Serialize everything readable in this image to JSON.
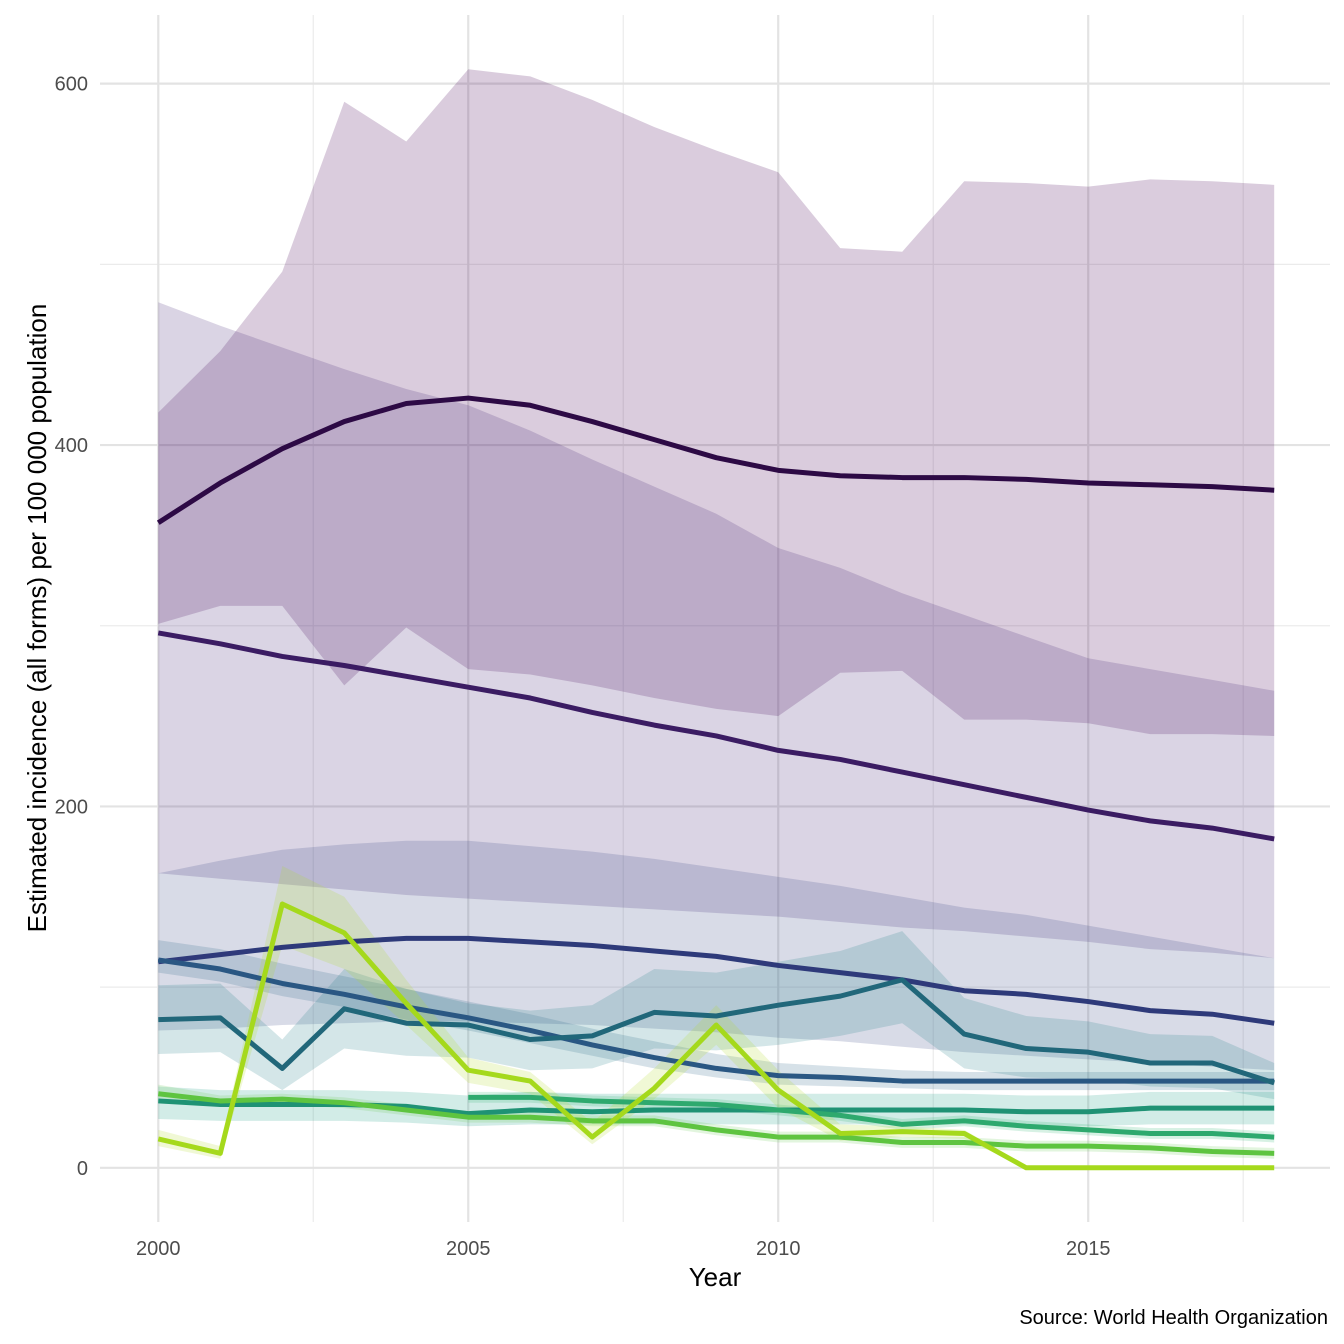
{
  "chart_data": {
    "type": "line",
    "title": "",
    "xlabel": "Year",
    "ylabel": "Estimated incidence (all forms) per 100 000 population",
    "caption": "Source: World Health Organization",
    "xlim": [
      1999.06,
      2018.9
    ],
    "ylim": [
      -30,
      638
    ],
    "x_ticks": [
      2000,
      2005,
      2010,
      2015
    ],
    "x_tick_labels": [
      "2000",
      "2005",
      "2010",
      "2015"
    ],
    "x_minor_ticks": [
      2002.5,
      2007.5,
      2012.5,
      2017.5
    ],
    "y_ticks": [
      0,
      200,
      400,
      600
    ],
    "y_tick_labels": [
      "0",
      "200",
      "400",
      "600"
    ],
    "y_minor_ticks": [
      100,
      300,
      500
    ],
    "grid": true,
    "legend": "none",
    "series": [
      {
        "name": "series-1",
        "color": "#2d0a45",
        "band_color": "#440154",
        "x": [
          2000,
          2001,
          2002,
          2003,
          2004,
          2005,
          2006,
          2007,
          2008,
          2009,
          2010,
          2011,
          2012,
          2013,
          2014,
          2015,
          2016,
          2017,
          2018
        ],
        "values": [
          357,
          379,
          398,
          413,
          423,
          426,
          422,
          413,
          403,
          393,
          386,
          383,
          382,
          382,
          381,
          379,
          378,
          377,
          375
        ],
        "upper": [
          418,
          452,
          496,
          590,
          568,
          608,
          604,
          591,
          576,
          563,
          551,
          509,
          507,
          546,
          545,
          543,
          547,
          546,
          544
        ],
        "lower": [
          301,
          311,
          311,
          267,
          299,
          276,
          273,
          267,
          260,
          254,
          250,
          274,
          275,
          248,
          248,
          246,
          240,
          240,
          239
        ]
      },
      {
        "name": "series-2",
        "color": "#3b1c63",
        "band_color": "#482878",
        "x": [
          2000,
          2001,
          2002,
          2003,
          2004,
          2005,
          2006,
          2007,
          2008,
          2009,
          2010,
          2011,
          2012,
          2013,
          2014,
          2015,
          2016,
          2017,
          2018
        ],
        "values": [
          296,
          290,
          283,
          278,
          272,
          266,
          260,
          252,
          245,
          239,
          231,
          226,
          219,
          212,
          205,
          198,
          192,
          188,
          182
        ],
        "upper": [
          479,
          466,
          454,
          442,
          431,
          422,
          408,
          392,
          377,
          362,
          343,
          332,
          318,
          306,
          294,
          282,
          276,
          270,
          264
        ],
        "lower": [
          163,
          160,
          157,
          154,
          151,
          149,
          147,
          145,
          143,
          141,
          139,
          136,
          133,
          131,
          128,
          125,
          121,
          119,
          116
        ]
      },
      {
        "name": "series-3",
        "color": "#2e3a7a",
        "band_color": "#3e4a89",
        "x": [
          2000,
          2001,
          2002,
          2003,
          2004,
          2005,
          2006,
          2007,
          2008,
          2009,
          2010,
          2011,
          2012,
          2013,
          2014,
          2015,
          2016,
          2017,
          2018
        ],
        "values": [
          114,
          118,
          122,
          125,
          127,
          127,
          125,
          123,
          120,
          117,
          112,
          108,
          104,
          98,
          96,
          92,
          87,
          85,
          80
        ],
        "upper": [
          163,
          170,
          176,
          179,
          181,
          181,
          178,
          175,
          171,
          166,
          161,
          156,
          150,
          144,
          140,
          134,
          128,
          122,
          116
        ],
        "lower": [
          76,
          77,
          79,
          80,
          81,
          81,
          80,
          79,
          77,
          75,
          72,
          70,
          67,
          64,
          62,
          60,
          58,
          56,
          54
        ]
      },
      {
        "name": "series-4",
        "color": "#2a5783",
        "band_color": "#31688e",
        "x": [
          2000,
          2001,
          2002,
          2003,
          2004,
          2005,
          2006,
          2007,
          2008,
          2009,
          2010,
          2011,
          2012,
          2013,
          2014,
          2015,
          2016,
          2017,
          2018
        ],
        "values": [
          115,
          110,
          102,
          96,
          89,
          83,
          76,
          68,
          61,
          55,
          51,
          50,
          48,
          48,
          48,
          48,
          48,
          48,
          48
        ],
        "upper": [
          126,
          121,
          113,
          106,
          99,
          92,
          85,
          77,
          70,
          63,
          58,
          56,
          54,
          53,
          53,
          53,
          53,
          53,
          53
        ],
        "lower": [
          108,
          103,
          95,
          89,
          82,
          76,
          69,
          62,
          55,
          50,
          46,
          45,
          44,
          43,
          43,
          43,
          43,
          43,
          43
        ]
      },
      {
        "name": "series-5",
        "color": "#21677a",
        "band_color": "#26828e",
        "x": [
          2000,
          2001,
          2002,
          2003,
          2004,
          2005,
          2006,
          2007,
          2008,
          2009,
          2010,
          2011,
          2012,
          2013,
          2014,
          2015,
          2016,
          2017,
          2018
        ],
        "values": [
          82,
          83,
          55,
          88,
          80,
          79,
          71,
          73,
          86,
          84,
          90,
          95,
          104,
          74,
          66,
          64,
          58,
          58,
          47
        ],
        "upper": [
          101,
          102,
          71,
          110,
          99,
          91,
          87,
          90,
          110,
          108,
          114,
          120,
          131,
          94,
          84,
          81,
          74,
          73,
          58
        ],
        "lower": [
          63,
          64,
          43,
          66,
          62,
          61,
          54,
          55,
          66,
          65,
          68,
          73,
          80,
          55,
          50,
          49,
          45,
          44,
          38
        ]
      },
      {
        "name": "series-6",
        "color": "#1f9274",
        "band_color": "#1f9e89",
        "x": [
          2000,
          2001,
          2002,
          2003,
          2004,
          2005,
          2006,
          2007,
          2008,
          2009,
          2010,
          2011,
          2012,
          2013,
          2014,
          2015,
          2016,
          2017,
          2018
        ],
        "values": [
          37,
          35,
          35,
          35,
          34,
          30,
          32,
          31,
          32,
          32,
          32,
          32,
          32,
          32,
          31,
          31,
          33,
          33,
          33
        ],
        "upper": [
          45,
          43,
          43,
          43,
          42,
          40,
          42,
          41,
          41,
          41,
          41,
          41,
          41,
          41,
          40,
          40,
          42,
          42,
          42
        ],
        "lower": [
          27,
          26,
          26,
          26,
          25,
          23,
          24,
          24,
          24,
          24,
          24,
          24,
          24,
          24,
          23,
          23,
          24,
          24,
          24
        ]
      },
      {
        "name": "series-7",
        "color": "#2ea96e",
        "band_color": "#35b779",
        "x": [
          2005,
          2006,
          2007,
          2008,
          2009,
          2010,
          2011,
          2012,
          2013,
          2014,
          2015,
          2016,
          2017,
          2018
        ],
        "values": [
          39,
          39,
          37,
          36,
          35,
          32,
          29,
          24,
          26,
          23,
          21,
          19,
          19,
          17
        ],
        "upper": [
          42,
          42,
          40,
          39,
          38,
          35,
          32,
          27,
          29,
          26,
          24,
          22,
          22,
          20
        ],
        "lower": [
          36,
          36,
          34,
          33,
          32,
          29,
          26,
          21,
          23,
          20,
          18,
          16,
          16,
          14
        ]
      },
      {
        "name": "series-8",
        "color": "#5ec440",
        "band_color": "#6ece58",
        "x": [
          2000,
          2001,
          2002,
          2003,
          2004,
          2005,
          2006,
          2007,
          2008,
          2009,
          2010,
          2011,
          2012,
          2013,
          2014,
          2015,
          2016,
          2017,
          2018
        ],
        "values": [
          41,
          37,
          38,
          36,
          32,
          28,
          28,
          26,
          26,
          21,
          17,
          17,
          14,
          14,
          12,
          12,
          11,
          9,
          8
        ],
        "upper": [
          46,
          40,
          41,
          39,
          35,
          31,
          31,
          29,
          29,
          24,
          20,
          20,
          17,
          17,
          15,
          15,
          14,
          12,
          11
        ],
        "lower": [
          37,
          34,
          35,
          33,
          29,
          25,
          25,
          23,
          23,
          18,
          14,
          14,
          11,
          11,
          9,
          9,
          8,
          6,
          5
        ]
      },
      {
        "name": "series-9",
        "color": "#a5d91c",
        "band_color": "#b5de2b",
        "x": [
          2000,
          2001,
          2002,
          2003,
          2004,
          2005,
          2006,
          2007,
          2008,
          2009,
          2010,
          2011,
          2012,
          2013,
          2014,
          2015,
          2016,
          2017,
          2018
        ],
        "values": [
          16,
          8,
          146,
          130,
          91,
          54,
          48,
          17,
          44,
          79,
          43,
          19,
          20,
          19,
          0,
          0,
          0,
          0,
          0
        ],
        "upper": [
          21,
          12,
          167,
          150,
          104,
          61,
          53,
          25,
          55,
          90,
          54,
          24,
          23,
          21,
          1,
          1,
          1,
          1,
          1
        ],
        "lower": [
          12,
          5,
          123,
          110,
          79,
          47,
          41,
          13,
          38,
          68,
          33,
          15,
          17,
          16,
          0,
          0,
          0,
          0,
          0
        ]
      }
    ]
  }
}
